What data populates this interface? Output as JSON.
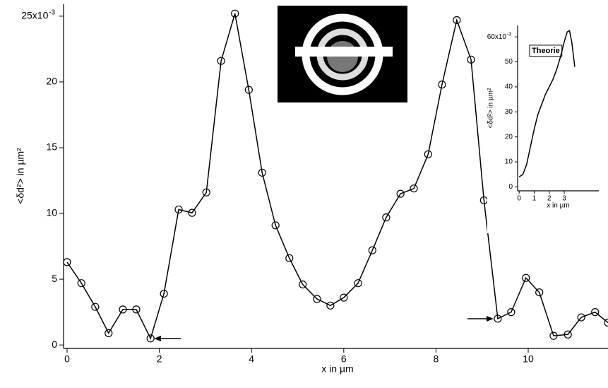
{
  "chart_data": [
    {
      "type": "line",
      "x_label": "x in µm",
      "y_label": "<δd²> in µm²",
      "color": "#000000",
      "markers": true,
      "x": [
        0,
        0.31,
        0.61,
        0.9,
        1.21,
        1.5,
        1.81,
        2.1,
        2.42,
        2.71,
        3.02,
        3.34,
        3.64,
        3.94,
        4.23,
        4.52,
        4.82,
        5.11,
        5.42,
        5.71,
        6.0,
        6.31,
        6.62,
        6.92,
        7.23,
        7.52,
        7.83,
        8.13,
        8.45,
        8.76,
        9.04,
        9.34,
        9.63,
        9.95,
        10.24,
        10.55,
        10.86,
        11.15,
        11.45,
        11.73
      ],
      "values": [
        6.3,
        4.7,
        2.9,
        0.9,
        2.7,
        2.7,
        0.5,
        3.9,
        10.3,
        10.05,
        11.6,
        21.6,
        25.2,
        19.4,
        13.1,
        9.1,
        6.6,
        4.6,
        3.5,
        3.0,
        3.6,
        4.7,
        7.2,
        9.7,
        11.5,
        11.9,
        14.5,
        19.8,
        24.7,
        21.7,
        11.0,
        2.0,
        2.5,
        5.1,
        4.0,
        0.7,
        0.8,
        2.1,
        2.5,
        1.7
      ],
      "xlim": [
        0,
        11.73
      ],
      "ylim": [
        -0.1,
        25.8
      ],
      "xticks": [
        0,
        2,
        4,
        6,
        8,
        10
      ],
      "yticks": [
        0,
        5,
        10,
        15,
        20,
        {
          "value": 25,
          "label": "25x10"
        }
      ],
      "y_exponent": "-3"
    },
    {
      "type": "line",
      "title": "Theorie",
      "x_label": "x in µm",
      "y_label": "<δd²> in µm²",
      "color": "#000000",
      "markers": false,
      "x": [
        0,
        0.25,
        0.5,
        0.75,
        1.0,
        1.25,
        1.5,
        1.75,
        2.0,
        2.25,
        2.5,
        2.75,
        3.0,
        3.2,
        3.35,
        3.5,
        3.7
      ],
      "values": [
        4,
        5,
        9,
        16,
        23,
        29,
        33,
        37,
        40,
        43,
        47,
        52,
        58,
        62,
        62.5,
        58,
        48
      ],
      "xlim": [
        -0.1,
        5.3
      ],
      "ylim": [
        -1,
        64
      ],
      "xticks": [
        0,
        1,
        2,
        3
      ],
      "yticks": [
        0,
        10,
        20,
        30,
        40,
        50,
        {
          "value": 60,
          "label": "60x10"
        }
      ],
      "y_exponent": "-3"
    }
  ]
}
